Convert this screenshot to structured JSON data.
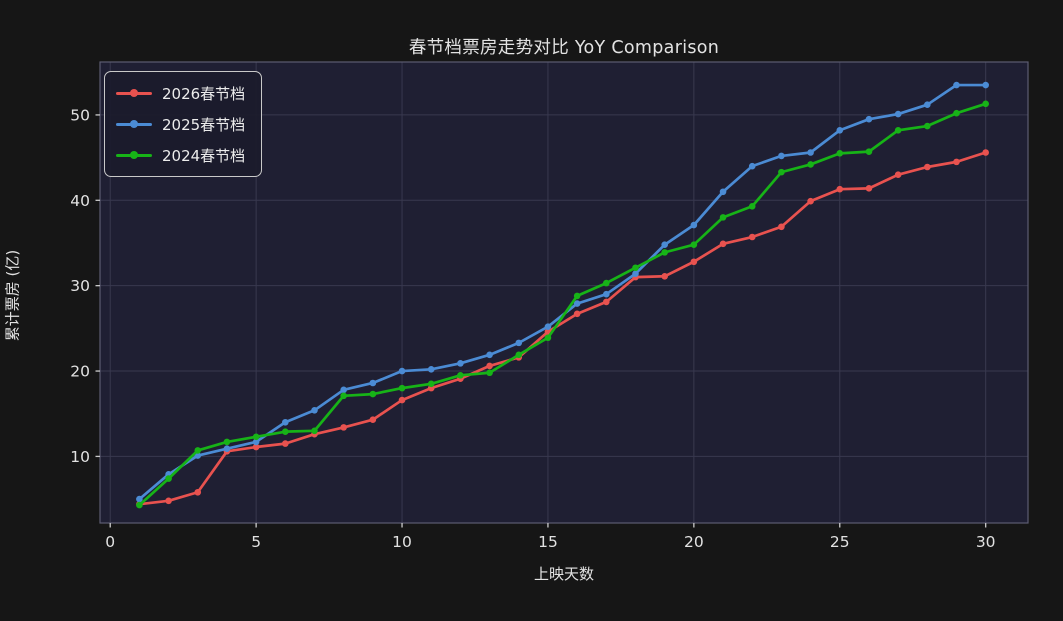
{
  "chart_data": {
    "type": "line",
    "title": "春节档票房走势对比 YoY Comparison",
    "xlabel": "上映天数",
    "ylabel": "累计票房 (亿)",
    "x": [
      1,
      2,
      3,
      4,
      5,
      6,
      7,
      8,
      9,
      10,
      11,
      12,
      13,
      14,
      15,
      16,
      17,
      18,
      19,
      20,
      21,
      22,
      23,
      24,
      25,
      26,
      27,
      28,
      29,
      30
    ],
    "series": [
      {
        "name": "2026春节档",
        "color": "#e8524f",
        "values": [
          4.4,
          4.8,
          5.8,
          10.6,
          11.1,
          11.5,
          12.6,
          13.4,
          14.3,
          16.6,
          18.0,
          19.1,
          20.6,
          21.6,
          24.6,
          26.7,
          28.1,
          31.0,
          31.1,
          32.8,
          34.9,
          35.7,
          36.9,
          39.9,
          41.3,
          41.4,
          43.0,
          43.9,
          44.5,
          45.6
        ]
      },
      {
        "name": "2025春节档",
        "color": "#4b8bd4",
        "values": [
          5.0,
          7.9,
          10.1,
          10.9,
          11.7,
          14.0,
          15.4,
          17.8,
          18.6,
          20.0,
          20.2,
          20.9,
          21.9,
          23.3,
          25.2,
          27.9,
          29.0,
          31.4,
          34.8,
          37.1,
          41.0,
          44.0,
          45.2,
          45.6,
          48.2,
          49.5,
          50.1,
          51.2,
          53.5,
          53.5
        ]
      },
      {
        "name": "2024春节档",
        "color": "#17b317",
        "values": [
          4.3,
          7.4,
          10.7,
          11.7,
          12.3,
          12.9,
          13.0,
          17.1,
          17.3,
          18.0,
          18.5,
          19.5,
          19.8,
          21.9,
          23.9,
          28.8,
          30.3,
          32.1,
          33.9,
          34.8,
          38.0,
          39.3,
          43.3,
          44.2,
          45.5,
          45.7,
          48.2,
          48.7,
          50.2,
          51.3
        ]
      }
    ],
    "xticks": [
      0,
      5,
      10,
      15,
      20,
      25,
      30
    ],
    "yticks": [
      10,
      20,
      30,
      40,
      50
    ],
    "xlim": [
      -0.35,
      31.45
    ],
    "ylim": [
      2.2,
      56.2
    ],
    "grid": true,
    "legend_position": "upper-left"
  },
  "colors": {
    "figure_bg": "#161616",
    "plot_bg": "#1f1f33",
    "grid": "#39394f",
    "spine": "#5c5c72",
    "tick": "#cccccc",
    "text": "#e2e2e2"
  }
}
